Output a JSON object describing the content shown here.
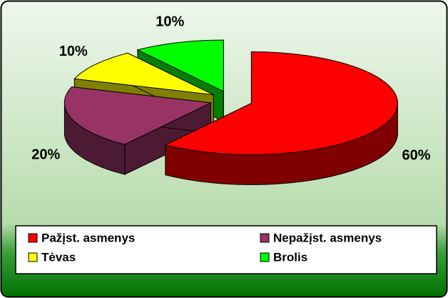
{
  "chart_data": {
    "type": "pie",
    "categories": [
      "Pažįst. asmenys",
      "Nepažįst. asmenys",
      "Tėvas",
      "Brolis"
    ],
    "values": [
      60,
      20,
      10,
      10
    ],
    "value_labels": [
      "60%",
      "20%",
      "10%",
      "10%"
    ],
    "colors": [
      "#ff0000",
      "#993366",
      "#ffff00",
      "#00ff00"
    ],
    "legend": "bottom"
  }
}
